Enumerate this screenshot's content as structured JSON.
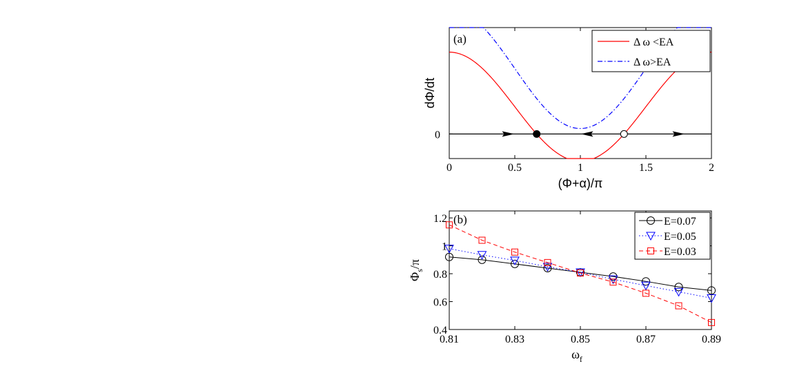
{
  "chart_data": [
    {
      "panel": "(a)",
      "type": "line",
      "xlabel": "(Φ+α)/π",
      "ylabel": "dΦ/dt",
      "xlim": [
        0,
        2
      ],
      "ylim": [
        -0.45,
        1.95
      ],
      "x_ticks": [
        0,
        0.5,
        1,
        1.5,
        2
      ],
      "x_tick_labels": [
        "0",
        "0.5",
        "1",
        "1.5",
        "2"
      ],
      "y_ticks": [
        0
      ],
      "y_tick_labels": [
        "0"
      ],
      "grid": false,
      "legend_position": "top-right",
      "series": [
        {
          "name": "Δ ω <EA",
          "formula": "0.5 + 1.0*cos(pi*x)",
          "color": "#ff0000",
          "style": "solid"
        },
        {
          "name": "Δ ω>EA",
          "formula": "1.2 + 1.1*cos(pi*x)",
          "color": "#0000ff",
          "style": "dashdot"
        }
      ],
      "fixed_points": [
        {
          "x": 0.667,
          "y": 0,
          "kind": "stable",
          "fill": "filled"
        },
        {
          "x": 1.333,
          "y": 0,
          "kind": "unstable",
          "fill": "open"
        }
      ],
      "flow_arrows": [
        {
          "x": 0.45,
          "direction": "right"
        },
        {
          "x": 1.05,
          "direction": "left"
        },
        {
          "x": 1.75,
          "direction": "right"
        }
      ]
    },
    {
      "panel": "(b)",
      "type": "line",
      "xlabel": "ω_f",
      "xlabel_main": "ω",
      "xlabel_sub": "f",
      "ylabel": "Φ_s/π",
      "ylabel_main": "Φ",
      "ylabel_sub": "s",
      "ylabel_tail": "/π",
      "xlim": [
        0.81,
        0.89
      ],
      "ylim": [
        0.4,
        1.25
      ],
      "x_ticks": [
        0.81,
        0.83,
        0.85,
        0.87,
        0.89
      ],
      "x_tick_labels": [
        "0.81",
        "0.83",
        "0.85",
        "0.87",
        "0.89"
      ],
      "y_ticks": [
        0.4,
        0.6,
        0.8,
        1.0,
        1.2
      ],
      "y_tick_labels": [
        "0.4",
        "0.6",
        "0.8",
        "1",
        "1.2"
      ],
      "grid": false,
      "legend_position": "top-right",
      "x": [
        0.81,
        0.82,
        0.83,
        0.84,
        0.85,
        0.86,
        0.87,
        0.88,
        0.89
      ],
      "series": [
        {
          "name": "E=0.07",
          "marker": "circle",
          "color": "#000000",
          "style": "solid",
          "values": [
            0.92,
            0.9,
            0.87,
            0.84,
            0.81,
            0.78,
            0.745,
            0.705,
            0.68
          ]
        },
        {
          "name": "E=0.05",
          "marker": "triangle-down",
          "color": "#0000ff",
          "style": "dotted",
          "values": [
            0.98,
            0.935,
            0.895,
            0.85,
            0.81,
            0.76,
            0.715,
            0.67,
            0.625
          ]
        },
        {
          "name": "E=0.03",
          "marker": "square",
          "color": "#ff0000",
          "style": "dashed",
          "values": [
            1.15,
            1.04,
            0.955,
            0.88,
            0.805,
            0.74,
            0.66,
            0.57,
            0.45
          ]
        }
      ]
    }
  ]
}
